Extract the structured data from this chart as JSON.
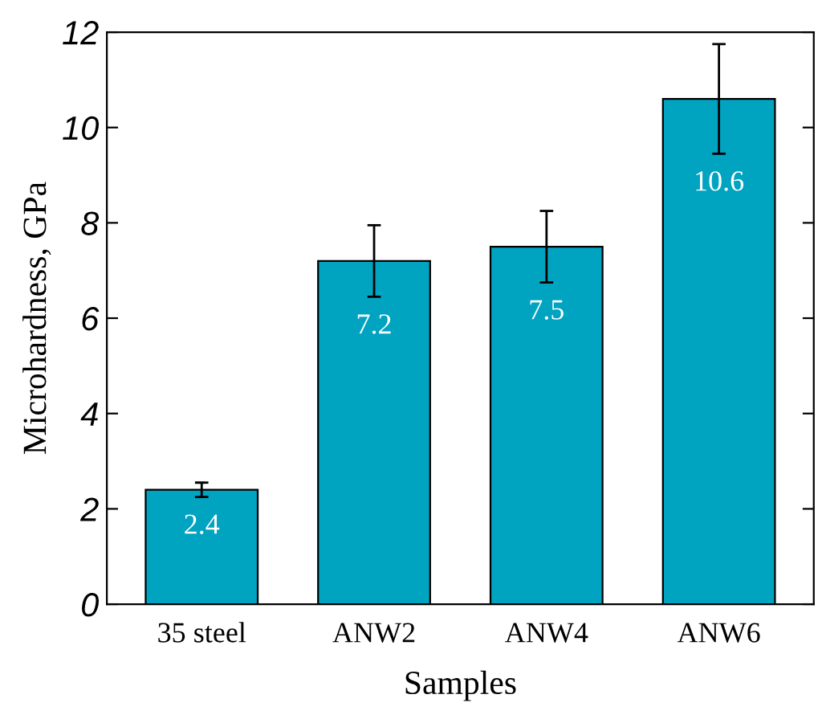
{
  "chart_data": {
    "type": "bar",
    "xlabel": "Samples",
    "ylabel": "Microhardness, GPa",
    "categories": [
      "35 steel",
      "ANW2",
      "ANW4",
      "ANW6"
    ],
    "values": [
      2.4,
      7.2,
      7.5,
      10.6
    ],
    "errors": [
      [
        2.25,
        2.55
      ],
      [
        6.45,
        7.95
      ],
      [
        6.75,
        8.25
      ],
      [
        9.45,
        11.75
      ]
    ],
    "color": "#00a3c0",
    "data_labels": true,
    "ylim": [
      0,
      12
    ],
    "yticks": [
      0,
      2,
      4,
      6,
      8,
      10,
      12
    ],
    "grid": false,
    "legend": false
  }
}
